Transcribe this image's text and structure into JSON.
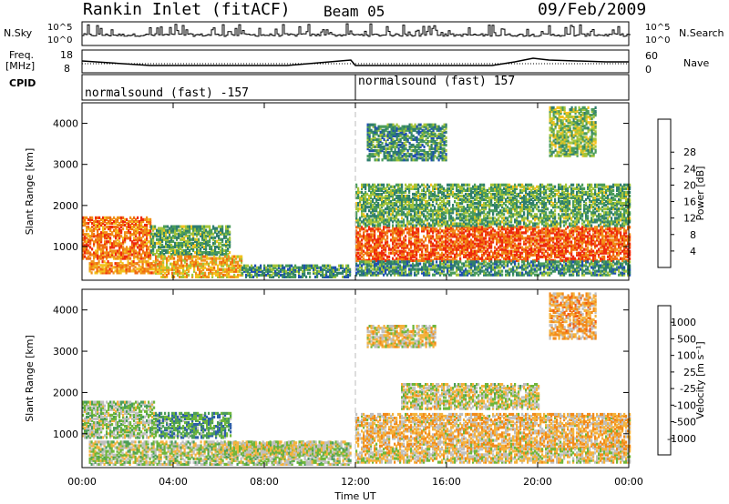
{
  "header": {
    "station": "Rankin Inlet (fitACF)",
    "beam": "Beam 05",
    "date": "09/Feb/2009"
  },
  "strip_labels": {
    "nsky": "N.Sky",
    "nsky_ticks": [
      "10^5",
      "10^0"
    ],
    "nsearch": "N.Search",
    "nsearch_ticks": [
      "10^5",
      "10^0"
    ],
    "freq_line1": "Freq.",
    "freq_line2": "[MHz]",
    "freq_ticks": [
      "18",
      "8"
    ],
    "nave": "Nave",
    "nave_ticks": [
      "60",
      "0"
    ],
    "cpid": "CPID"
  },
  "cpid_segments": [
    {
      "label": "normalsound (fast) -157"
    },
    {
      "label": "normalsound (fast) 157"
    }
  ],
  "colors": {
    "power_scale": [
      "#0a0aff",
      "#1f4fb0",
      "#2f7d6e",
      "#4a9c5a",
      "#a4c43a",
      "#f2c21f",
      "#f0911a",
      "#f06a10",
      "#ee2a0d"
    ],
    "velocity_scale": [
      "#ee1010",
      "#f25a12",
      "#f28a1a",
      "#f4b23c",
      "#bfbfbf",
      "#6fb63a",
      "#4a9c5a",
      "#2e5fa8",
      "#1a3aa8"
    ]
  },
  "chart_data": [
    {
      "type": "heatmap",
      "title": "",
      "xlabel": "Time UT",
      "ylabel": "Slant Range [km]",
      "x_ticks": [
        "00:00",
        "04:00",
        "08:00",
        "12:00",
        "16:00",
        "20:00",
        "00:00"
      ],
      "y_ticks": [
        1000,
        2000,
        3000,
        4000
      ],
      "xlim_hours": [
        0,
        24
      ],
      "ylim": [
        180,
        4500
      ],
      "colorbar_label": "Power [dB]",
      "colorbar_ticks": [
        "4",
        "8",
        "12",
        "16",
        "20",
        "24",
        "28"
      ],
      "range": [
        0,
        30
      ],
      "bands": [
        {
          "t0": 0.0,
          "t1": 3.0,
          "r0": 700,
          "r1": 1700,
          "v": 24
        },
        {
          "t0": 3.0,
          "t1": 6.5,
          "r0": 800,
          "r1": 1500,
          "v": 12
        },
        {
          "t0": 0.3,
          "t1": 3.2,
          "r0": 350,
          "r1": 650,
          "v": 22
        },
        {
          "t0": 3.2,
          "t1": 7.0,
          "r0": 250,
          "r1": 750,
          "v": 20
        },
        {
          "t0": 7.0,
          "t1": 11.8,
          "r0": 250,
          "r1": 550,
          "v": 10
        },
        {
          "t0": 12.0,
          "t1": 24.0,
          "r0": 650,
          "r1": 1500,
          "v": 26
        },
        {
          "t0": 12.0,
          "t1": 24.0,
          "r0": 300,
          "r1": 650,
          "v": 10
        },
        {
          "t0": 12.0,
          "t1": 24.0,
          "r0": 1500,
          "r1": 2500,
          "v": 12
        },
        {
          "t0": 12.5,
          "t1": 16.0,
          "r0": 3100,
          "r1": 4000,
          "v": 10
        },
        {
          "t0": 20.5,
          "t1": 22.5,
          "r0": 3200,
          "r1": 4400,
          "v": 14
        }
      ]
    },
    {
      "type": "heatmap",
      "title": "",
      "xlabel": "Time UT",
      "ylabel": "Slant Range [km]",
      "x_ticks": [
        "00:00",
        "04:00",
        "08:00",
        "12:00",
        "16:00",
        "20:00",
        "00:00"
      ],
      "y_ticks": [
        1000,
        2000,
        3000,
        4000
      ],
      "xlim_hours": [
        0,
        24
      ],
      "ylim": [
        180,
        4500
      ],
      "colorbar_label": "Velocity [m s⁻¹]",
      "colorbar_ticks": [
        "1000",
        "500",
        "100",
        "25",
        "-25",
        "-100",
        "-500",
        "-1000"
      ],
      "range": [
        -1000,
        1000
      ],
      "bands": [
        {
          "t0": 0.0,
          "t1": 3.2,
          "r0": 900,
          "r1": 1800,
          "v": 150
        },
        {
          "t0": 3.2,
          "t1": 6.5,
          "r0": 900,
          "r1": 1500,
          "v": 400
        },
        {
          "t0": 0.3,
          "t1": 11.8,
          "r0": 250,
          "r1": 800,
          "v": 80
        },
        {
          "t0": 6.0,
          "t1": 11.0,
          "r0": 500,
          "r1": 800,
          "v": 0
        },
        {
          "t0": 12.0,
          "t1": 24.0,
          "r0": 650,
          "r1": 1500,
          "v": -200
        },
        {
          "t0": 12.0,
          "t1": 24.0,
          "r0": 300,
          "r1": 650,
          "v": -80
        },
        {
          "t0": 14.0,
          "t1": 20.0,
          "r0": 1600,
          "r1": 2200,
          "v": 0
        },
        {
          "t0": 12.5,
          "t1": 15.5,
          "r0": 3100,
          "r1": 3600,
          "v": -80
        },
        {
          "t0": 20.5,
          "t1": 22.5,
          "r0": 3300,
          "r1": 4400,
          "v": -300
        }
      ]
    }
  ]
}
